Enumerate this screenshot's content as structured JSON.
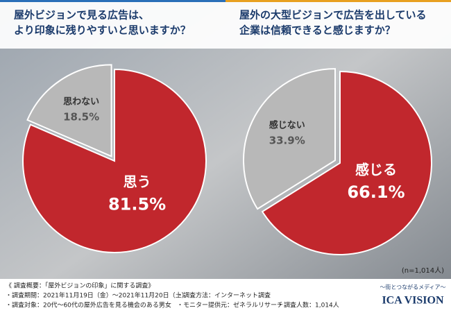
{
  "chart_data": [
    {
      "type": "pie",
      "title": [
        "屋外ビジョンで見る広告は、",
        "より印象に残りやすいと思いますか？"
      ],
      "categories": [
        "思う",
        "思わない"
      ],
      "values": [
        81.5,
        18.5
      ],
      "value_labels": [
        "81.5%",
        "18.5%"
      ],
      "colors": [
        "#c1272d",
        "#b8b8b8"
      ]
    },
    {
      "type": "pie",
      "title": [
        "屋外の大型ビジョンで広告を出している",
        "企業は信頼できると感じますか？"
      ],
      "categories": [
        "感じる",
        "感じない"
      ],
      "values": [
        66.1,
        33.9
      ],
      "value_labels": [
        "66.1%",
        "33.9%"
      ],
      "colors": [
        "#c1272d",
        "#b8b8b8"
      ]
    }
  ],
  "sample_note": "(n=1,014人)",
  "notes": [
    "《 調査概要：「屋外ビジョンの印象」に関する調査》",
    "・調査期間：2021年11月19日（金）〜2021年11月20日（土）",
    "・調査方法：インターネット調査",
    "・調査対象：20代〜60代の屋外広告を見る機会のある男女",
    "・モニター提供元：ゼネラルリサーチ",
    "・調査人数：1,014人"
  ],
  "logo": {
    "tagline": "〜街とつながるメディア〜",
    "name": "ICA VISION"
  }
}
